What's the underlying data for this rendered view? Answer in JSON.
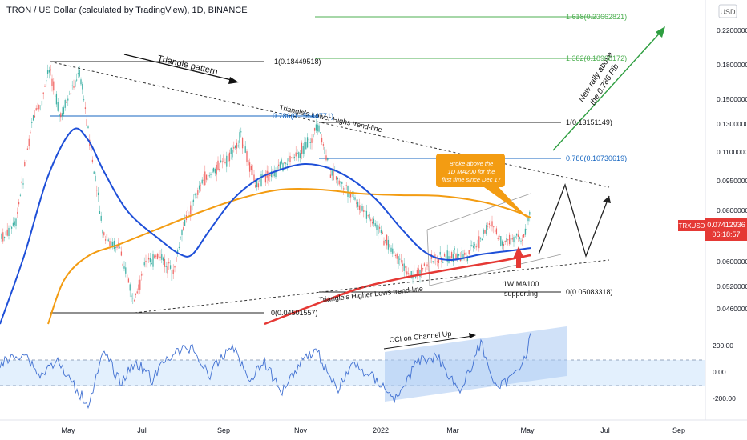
{
  "header": {
    "title": "TRON / US Dollar (calculated by TradingView), 1D, BINANCE"
  },
  "currency": "USD",
  "symbol_badge": {
    "label": "TRXUSD",
    "price": "0.07412936",
    "countdown": "06:18:57",
    "color": "#e53935"
  },
  "chart_data": {
    "type": "line",
    "price_axis_ticks": [
      "0.22000000",
      "0.18000000",
      "0.15000000",
      "0.13000000",
      "0.11000000",
      "0.09500000",
      "0.08000000",
      "0.06000000",
      "0.05200000",
      "0.04600000"
    ],
    "cci_axis_ticks": [
      "200.00",
      "0.00",
      "-200.00"
    ],
    "time_axis_ticks": [
      "May",
      "Jul",
      "Sep",
      "Nov",
      "2022",
      "Mar",
      "May",
      "Jul",
      "Sep"
    ],
    "fib_levels": [
      {
        "label": "1.618(0.23662821)",
        "color": "#4caf50"
      },
      {
        "label": "1.382(0.18908172)",
        "color": "#4caf50"
      },
      {
        "label": "1(0.18449518)",
        "color": "#000000"
      },
      {
        "label": "0.786(0.15644771)",
        "color": "#1565c0"
      },
      {
        "label": "1(0.13151149)",
        "color": "#000000"
      },
      {
        "label": "0.786(0.10730619)",
        "color": "#1565c0"
      },
      {
        "label": "0(0.05083318)",
        "color": "#000000"
      },
      {
        "label": "0(0.04501557)",
        "color": "#000000"
      }
    ],
    "series": [
      {
        "name": "1D MA200",
        "color": "#f39c12"
      },
      {
        "name": "1W MA100",
        "color": "#e53935"
      }
    ],
    "annotations": {
      "triangle_pattern": "Triangle pattern",
      "lower_highs": "Triangle's Lower Highs trend-line",
      "higher_lows": "Triangle's Higher Lows trend-line",
      "rally_line1": "New rally above",
      "rally_line2": "the 0.786 Fib",
      "callout_line1": "Broke above the",
      "callout_line2": "1D MA200 for the",
      "callout_line3": "first time since Dec 17",
      "support_line1": "1W MA100",
      "support_line2": "supporting",
      "cci_label": "CCI on Channel Up"
    },
    "colors": {
      "up": "#26a69a",
      "down": "#ef5350",
      "ma50": "#1e4fd8",
      "ma200": "#f39c12",
      "ma100w": "#e53935",
      "cci": "#3f6fd1"
    }
  }
}
